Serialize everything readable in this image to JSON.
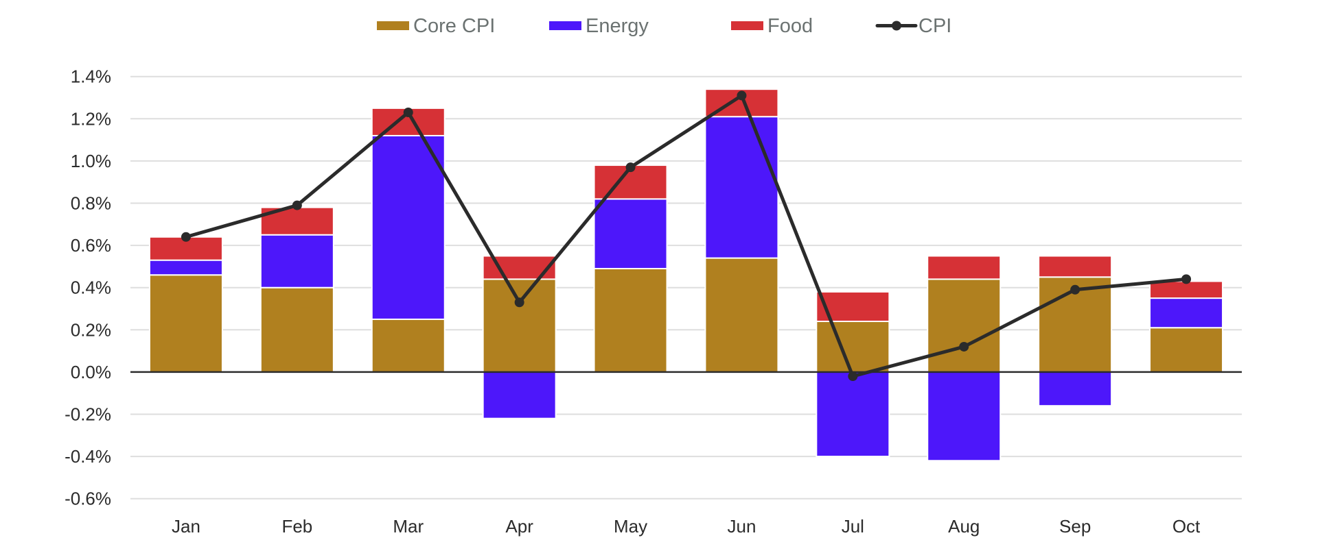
{
  "chart_data": {
    "type": "bar",
    "stacked": true,
    "title": "",
    "xlabel": "",
    "ylabel": "",
    "categories": [
      "Jan",
      "Feb",
      "Mar",
      "Apr",
      "May",
      "Jun",
      "Jul",
      "Aug",
      "Sep",
      "Oct"
    ],
    "series": [
      {
        "name": "Core CPI",
        "kind": "bar",
        "color": "#b0801f",
        "values": [
          0.46,
          0.4,
          0.25,
          0.44,
          0.49,
          0.54,
          0.24,
          0.44,
          0.45,
          0.21
        ]
      },
      {
        "name": "Energy",
        "kind": "bar",
        "color": "#4d17fa",
        "values": [
          0.07,
          0.25,
          0.87,
          -0.22,
          0.33,
          0.67,
          -0.4,
          -0.42,
          -0.16,
          0.14
        ]
      },
      {
        "name": "Food",
        "kind": "bar",
        "color": "#d63136",
        "values": [
          0.11,
          0.13,
          0.13,
          0.11,
          0.16,
          0.13,
          0.14,
          0.11,
          0.1,
          0.08
        ]
      },
      {
        "name": "CPI",
        "kind": "line",
        "color": "#2b2b2b",
        "values": [
          0.64,
          0.79,
          1.23,
          0.33,
          0.97,
          1.31,
          -0.02,
          0.12,
          0.39,
          0.44
        ]
      }
    ],
    "ylim": [
      -0.6,
      1.4
    ],
    "yticks": [
      -0.6,
      -0.4,
      -0.2,
      0.0,
      0.2,
      0.4,
      0.6,
      0.8,
      1.0,
      1.2,
      1.4
    ],
    "ytick_labels": [
      "-0.6%",
      "-0.4%",
      "-0.2%",
      "0.0%",
      "0.2%",
      "0.4%",
      "0.6%",
      "0.8%",
      "1.0%",
      "1.2%",
      "1.4%"
    ],
    "y_unit": "%",
    "grid": true,
    "legend": {
      "position": "top-center",
      "entries": [
        "Core CPI",
        "Energy",
        "Food",
        "CPI"
      ]
    }
  }
}
